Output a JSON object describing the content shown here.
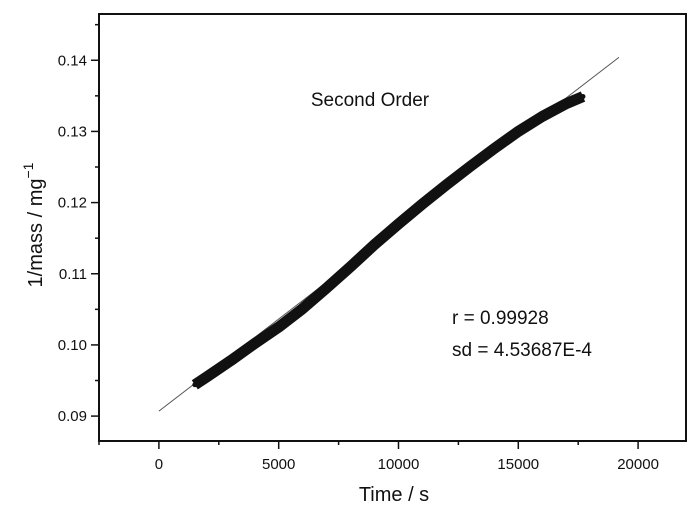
{
  "chart_data": {
    "type": "scatter",
    "title": "Second Order",
    "xlabel": "Time / s",
    "ylabel": "1/mass  / mg",
    "ylabel_superscript": "−1",
    "xlim": [
      -2500,
      22000
    ],
    "ylim": [
      0.0865,
      0.1465
    ],
    "x_ticks": [
      0,
      5000,
      10000,
      15000,
      20000
    ],
    "y_ticks": [
      0.09,
      0.1,
      0.11,
      0.12,
      0.13,
      0.14
    ],
    "y_tick_labels": [
      "0.09",
      "0.10",
      "0.11",
      "0.12",
      "0.13",
      "0.14"
    ],
    "grid": false,
    "series": [
      {
        "points": [
          [
            1500,
            0.0944
          ],
          [
            2000,
            0.0955
          ],
          [
            3000,
            0.0978
          ],
          [
            4000,
            0.1002
          ],
          [
            5000,
            0.1025
          ],
          [
            6000,
            0.1051
          ],
          [
            7000,
            0.108
          ],
          [
            8000,
            0.111
          ],
          [
            9000,
            0.1141
          ],
          [
            10000,
            0.117
          ],
          [
            11000,
            0.1198
          ],
          [
            12000,
            0.1225
          ],
          [
            13000,
            0.1251
          ],
          [
            14000,
            0.1276
          ],
          [
            15000,
            0.13
          ],
          [
            16000,
            0.1321
          ],
          [
            17000,
            0.1339
          ],
          [
            17700,
            0.1349
          ]
        ],
        "color": "#111111"
      },
      {
        "kind": "fit-line",
        "points": [
          [
            0,
            0.0907
          ],
          [
            19200,
            0.1404
          ]
        ],
        "color": "#555555"
      }
    ],
    "annotations": [
      {
        "text": "r = 0.99928"
      },
      {
        "text": "sd = 4.53687E-4"
      }
    ]
  }
}
